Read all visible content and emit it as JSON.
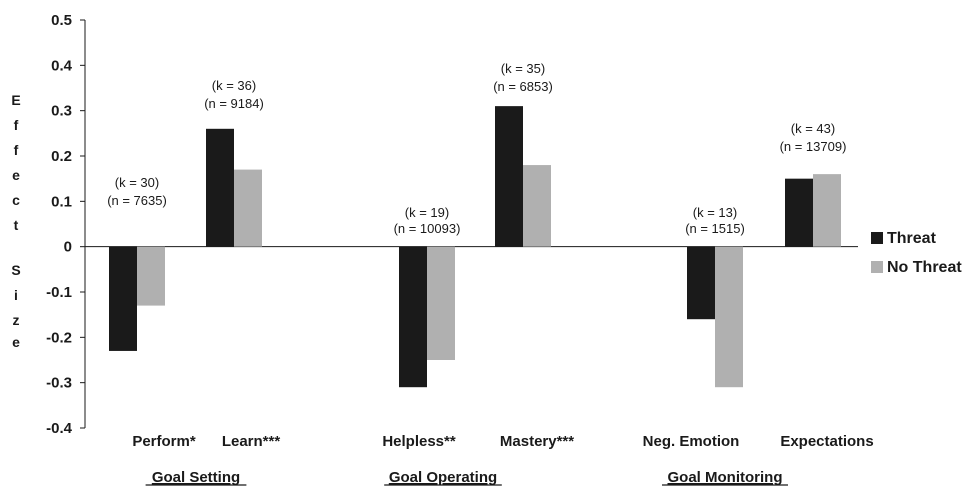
{
  "chart_data": {
    "type": "bar",
    "ylabel_letters": [
      "E",
      "f",
      "f",
      "e",
      "c",
      "t",
      "S",
      "i",
      "z",
      "e"
    ],
    "yticks": [
      "0.5",
      "0.4",
      "0.3",
      "0.2",
      "0.1",
      "0",
      "-0.1",
      "-0.2",
      "-0.3",
      "-0.4"
    ],
    "ylim": [
      -0.4,
      0.5
    ],
    "categories": [
      "Perform*",
      "Learn***",
      "Helpless**",
      "Mastery***",
      "Neg. Emotion",
      "Expectations"
    ],
    "groups": [
      {
        "label": "Goal Setting",
        "categories": [
          0,
          1
        ]
      },
      {
        "label": "Goal Operating",
        "categories": [
          2,
          3
        ]
      },
      {
        "label": "Goal Monitoring",
        "categories": [
          4,
          5
        ]
      }
    ],
    "series": [
      {
        "name": "Threat",
        "color": "#1a1a1a",
        "values": [
          -0.23,
          0.26,
          -0.31,
          0.31,
          -0.16,
          0.15
        ]
      },
      {
        "name": "No Threat",
        "color": "#b0b0b0",
        "values": [
          -0.13,
          0.17,
          -0.25,
          0.18,
          -0.31,
          0.16
        ]
      }
    ],
    "annotations": [
      {
        "k": "(k = 30)",
        "n": "(n  =  7635)"
      },
      {
        "k": "(k = 36)",
        "n": "(n  =  9184)"
      },
      {
        "k": "(k = 19)",
        "n": "(n  =  10093)"
      },
      {
        "k": "(k = 35)",
        "n": "(n  =  6853)"
      },
      {
        "k": "(k = 13)",
        "n": "(n  =  1515)"
      },
      {
        "k": "(k = 43)",
        "n": "(n  =  13709)"
      }
    ],
    "legend_position": "right"
  }
}
